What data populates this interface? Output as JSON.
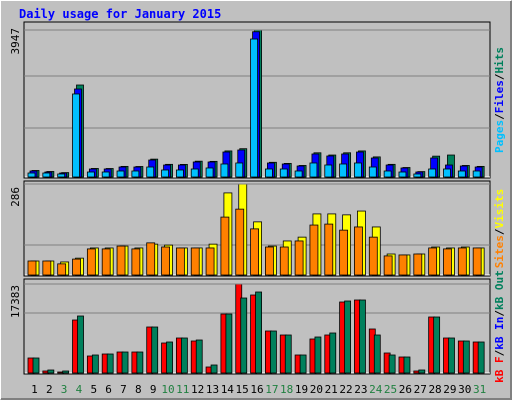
{
  "chart_data": [
    {
      "type": "bar",
      "title": "Daily usage for January 2015",
      "ylim": [
        0,
        3947
      ],
      "yticks": [
        3947
      ],
      "legend_separator": "/",
      "legend_reversed": true,
      "series": [
        {
          "name": "Hits",
          "color": "#00805c",
          "values": [
            175,
            148,
            118,
            2470,
            230,
            228,
            285,
            282,
            480,
            340,
            338,
            425,
            420,
            700,
            760,
            3947,
            395,
            365,
            310,
            650,
            590,
            650,
            700,
            540,
            340,
            255,
            145,
            560,
            590,
            310,
            285
          ]
        },
        {
          "name": "Files",
          "color": "#0000ff",
          "values": [
            161,
            134,
            107,
            2363,
            215,
            215,
            268,
            268,
            456,
            322,
            322,
            403,
            403,
            671,
            725,
            3900,
            376,
            349,
            295,
            618,
            564,
            618,
            671,
            510,
            322,
            242,
            134,
            510,
            322,
            295,
            268
          ]
        },
        {
          "name": "Pages",
          "color": "#00c0ff",
          "values": [
            107,
            107,
            81,
            2229,
            134,
            134,
            161,
            161,
            268,
            188,
            188,
            215,
            242,
            349,
            376,
            3705,
            215,
            215,
            161,
            376,
            322,
            349,
            376,
            268,
            161,
            134,
            81,
            215,
            215,
            161,
            161
          ]
        }
      ]
    },
    {
      "type": "bar",
      "ylim": [
        0,
        286
      ],
      "yticks": [
        286
      ],
      "legend_separator": "/",
      "legend_reversed": true,
      "series": [
        {
          "name": "Visits",
          "color": "#ffff00",
          "values": [
            44,
            44,
            41,
            53,
            85,
            85,
            91,
            85,
            97,
            94,
            85,
            85,
            97,
            258,
            286,
            167,
            91,
            107,
            119,
            192,
            192,
            189,
            201,
            151,
            66,
            63,
            66,
            88,
            85,
            88,
            85
          ]
        },
        {
          "name": "Sites",
          "color": "#ff8000",
          "values": [
            44,
            44,
            35,
            50,
            82,
            82,
            91,
            82,
            101,
            88,
            85,
            85,
            85,
            182,
            207,
            145,
            88,
            88,
            107,
            157,
            160,
            141,
            151,
            119,
            60,
            63,
            66,
            85,
            82,
            85,
            85
          ]
        }
      ]
    },
    {
      "type": "bar",
      "ylim": [
        0,
        17383
      ],
      "yticks": [
        17383
      ],
      "legend_separator": "/",
      "legend_reversed": false,
      "categories": [
        "1",
        "2",
        "3",
        "4",
        "5",
        "6",
        "7",
        "8",
        "9",
        "10",
        "11",
        "12",
        "13",
        "14",
        "15",
        "16",
        "17",
        "18",
        "19",
        "20",
        "21",
        "22",
        "23",
        "24",
        "25",
        "26",
        "27",
        "28",
        "29",
        "30",
        "31"
      ],
      "category_colors": [
        "#000000",
        "#000000",
        "#208040",
        "#208040",
        "#000000",
        "#000000",
        "#000000",
        "#000000",
        "#000000",
        "#208040",
        "#208040",
        "#000000",
        "#000000",
        "#000000",
        "#000000",
        "#000000",
        "#208040",
        "#208040",
        "#000000",
        "#000000",
        "#000000",
        "#000000",
        "#000000",
        "#208040",
        "#208040",
        "#000000",
        "#000000",
        "#000000",
        "#000000",
        "#000000",
        "#208040"
      ],
      "series": [
        {
          "name": "kB F",
          "color": "#ff0000",
          "values": [
            2930,
            391,
            195,
            10351,
            3320,
            3711,
            4101,
            4101,
            8984,
            5859,
            6836,
            6250,
            1172,
            11523,
            17383,
            15234,
            8203,
            7422,
            3516,
            6641,
            7422,
            13867,
            14258,
            8594,
            3906,
            3125,
            391,
            10937,
            6836,
            6250,
            6055
          ]
        },
        {
          "name": "kB In",
          "color": "#0000ff",
          "values": [
            0,
            0,
            0,
            0,
            0,
            0,
            0,
            0,
            0,
            0,
            0,
            0,
            0,
            0,
            0,
            0,
            0,
            0,
            0,
            0,
            0,
            0,
            0,
            0,
            0,
            0,
            0,
            0,
            0,
            0,
            0
          ]
        },
        {
          "name": "kB Out",
          "color": "#00805c",
          "values": [
            2930,
            586,
            391,
            11133,
            3516,
            3711,
            4101,
            4101,
            8984,
            6055,
            6836,
            6445,
            1563,
            11523,
            14648,
            15820,
            8203,
            7422,
            3516,
            7031,
            7813,
            14062,
            14258,
            7422,
            3516,
            3125,
            586,
            10937,
            6836,
            6250,
            6055
          ]
        }
      ]
    }
  ]
}
